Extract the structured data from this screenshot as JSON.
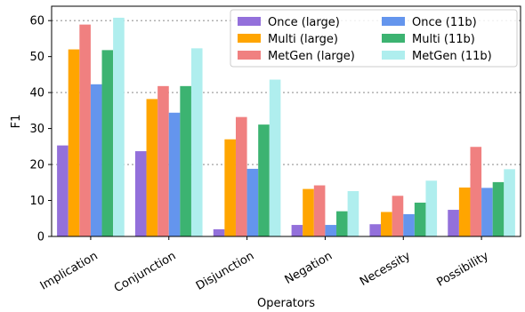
{
  "chart_data": {
    "type": "bar",
    "xlabel": "Operators",
    "ylabel": "F1",
    "ylim": [
      0,
      64
    ],
    "yticks": [
      0,
      10,
      20,
      30,
      40,
      50,
      60
    ],
    "grid": "horizontal dotted at 20, 40, 60",
    "legend_position": "top-right",
    "categories": [
      "Implication",
      "Conjunction",
      "Disjunction",
      "Negation",
      "Necessity",
      "Possibility"
    ],
    "series": [
      {
        "name": "Once (large)",
        "color": "#9370db",
        "values": [
          25.3,
          23.7,
          2.0,
          3.2,
          3.4,
          7.4
        ]
      },
      {
        "name": "Multi (large)",
        "color": "#ffa500",
        "values": [
          52.0,
          38.2,
          27.0,
          13.2,
          6.8,
          13.6
        ]
      },
      {
        "name": "MetGen (large)",
        "color": "#f08080",
        "values": [
          58.9,
          41.8,
          33.2,
          14.2,
          11.3,
          24.9
        ]
      },
      {
        "name": "Once (11b)",
        "color": "#6495ed",
        "values": [
          42.3,
          34.4,
          18.8,
          3.2,
          6.2,
          13.5
        ]
      },
      {
        "name": "Multi (11b)",
        "color": "#3cb371",
        "values": [
          51.8,
          41.8,
          31.1,
          7.0,
          9.4,
          15.1
        ]
      },
      {
        "name": "MetGen (11b)",
        "color": "#afeeee",
        "values": [
          60.8,
          52.3,
          43.6,
          12.6,
          15.5,
          18.7
        ]
      }
    ]
  }
}
